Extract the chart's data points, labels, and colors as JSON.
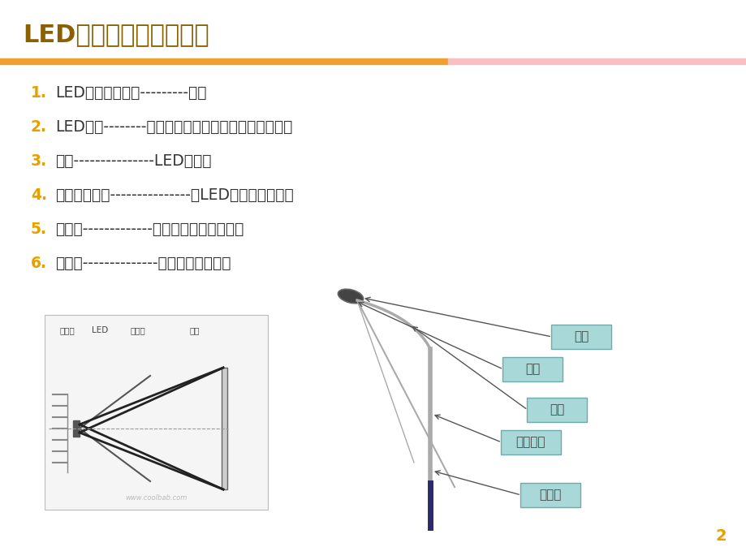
{
  "title": "LED灯具的基本组成部分",
  "title_color": "#8B6000",
  "title_fontsize": 22,
  "bg_color": "#FFFFFF",
  "divider_color_left": "#F0A030",
  "divider_color_right": "#F8C0C0",
  "number_color": "#E8A000",
  "text_color": "#333333",
  "items": [
    "LED芯片（灯珠）---------发光",
    "LED透镜--------改变光的方向，打出特殊的光学效果",
    "灯板---------------LED的载体",
    "驱动（电源）---------------使LED发光（发动机）",
    "灯体壳-------------美观，防水防尘，散热",
    "分控器--------------控制灯的变化方式"
  ],
  "item_numbers": [
    "1.",
    "2.",
    "3.",
    "4.",
    "5.",
    "6."
  ],
  "item_fontsize": 13.5,
  "page_number": "2",
  "box_color": "#A8D8D8",
  "box_border_color": "#70AAAA",
  "box_text_color": "#444444",
  "box_labels": [
    "灯具",
    "光源",
    "灯臂",
    "灯杆、线",
    "法兰盘"
  ],
  "left_diagram_labels": [
    "散热片",
    "LED",
    "反光罩",
    "透镜"
  ],
  "left_diagram_label_color": "#444444",
  "pole_color": "#AAAAAA",
  "pole_dark_color": "#2B2B6B",
  "arrow_color": "#555555"
}
